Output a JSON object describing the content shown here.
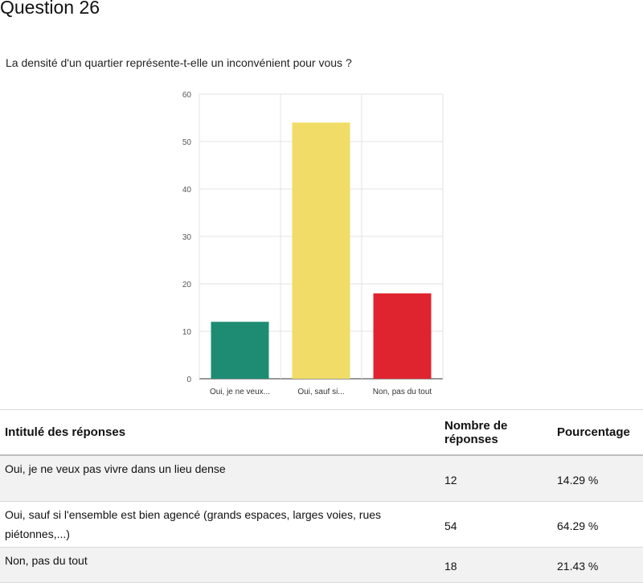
{
  "page": {
    "title": "Question 26",
    "question": "La densité d'un quartier représente-t-elle un inconvénient pour vous ?"
  },
  "chart_data": {
    "type": "bar",
    "categories": [
      "Oui, je ne veux...",
      "Oui, sauf si...",
      "Non, pas du tout"
    ],
    "values": [
      12,
      54,
      18
    ],
    "colors": [
      "#1e8c72",
      "#f0dc66",
      "#e0242f"
    ],
    "title": "",
    "xlabel": "",
    "ylabel": "",
    "ylim": [
      0,
      60
    ],
    "yticks": [
      0,
      10,
      20,
      30,
      40,
      50,
      60
    ],
    "grid": true
  },
  "table": {
    "headers": [
      "Intitulé des réponses",
      "Nombre de réponses",
      "Pourcentage"
    ],
    "rows": [
      {
        "label": "Oui, je ne veux pas vivre dans un lieu dense",
        "count": "12",
        "percent": "14.29 %"
      },
      {
        "label": "Oui, sauf si l'ensemble est bien agencé (grands espaces, larges voies, rues piétonnes,...)",
        "count": "54",
        "percent": "64.29 %"
      },
      {
        "label": "Non, pas du tout",
        "count": "18",
        "percent": "21.43 %"
      }
    ]
  }
}
